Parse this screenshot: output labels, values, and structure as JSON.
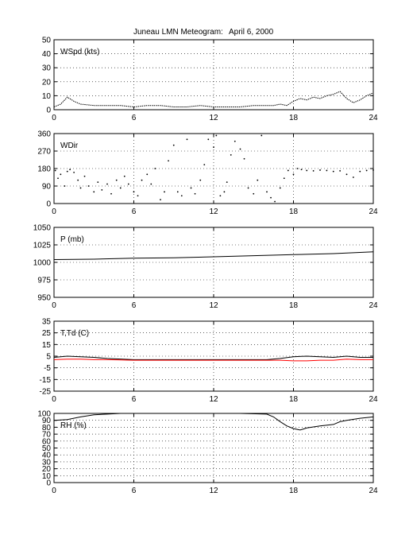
{
  "figure": {
    "title": "Juneau LMN Meteogram:",
    "date": "April  6, 2000"
  },
  "chart_data": [
    {
      "type": "line",
      "label": "WSpd (kts)",
      "xlim": [
        0,
        24
      ],
      "xticks": [
        0,
        6,
        12,
        18,
        24
      ],
      "ylim": [
        0,
        50
      ],
      "yticks": [
        0,
        10,
        20,
        30,
        40,
        50
      ],
      "grid": true,
      "series": [
        {
          "color": "#000000",
          "style": "dotted",
          "x": [
            0,
            0.5,
            1,
            1.5,
            2,
            3,
            4,
            5,
            6,
            7,
            8,
            9,
            10,
            11,
            12,
            13,
            14,
            15,
            16,
            16.5,
            17,
            17.5,
            18,
            18.5,
            19,
            19.5,
            20,
            20.5,
            21,
            21.5,
            22,
            22.5,
            23,
            23.5,
            24
          ],
          "y": [
            2,
            4,
            9,
            6,
            4,
            3,
            3,
            3,
            2,
            3,
            3,
            2,
            2,
            3,
            2,
            2,
            2,
            3,
            3,
            3,
            4,
            3,
            6,
            8,
            7,
            9,
            8,
            10,
            11,
            13,
            8,
            5,
            7,
            10,
            12
          ]
        }
      ]
    },
    {
      "type": "scatter",
      "label": "WDir",
      "xlim": [
        0,
        24
      ],
      "xticks": [
        0,
        6,
        12,
        18,
        24
      ],
      "ylim": [
        0,
        360
      ],
      "yticks": [
        0,
        90,
        180,
        270,
        360
      ],
      "grid": true,
      "series": [
        {
          "color": "#000000",
          "x": [
            0.1,
            0.3,
            0.5,
            0.8,
            1.0,
            1.2,
            1.5,
            1.8,
            2.0,
            2.3,
            2.6,
            3.0,
            3.3,
            3.6,
            4.0,
            4.3,
            4.7,
            5.0,
            5.3,
            5.6,
            6.0,
            6.3,
            6.6,
            7.0,
            7.3,
            7.6,
            8.0,
            8.3,
            8.6,
            9.0,
            9.3,
            9.6,
            10.0,
            10.3,
            10.6,
            11.0,
            11.3,
            11.6,
            12.0,
            12.2,
            12.5,
            12.8,
            13.0,
            13.3,
            13.6,
            14.0,
            14.3,
            14.6,
            15.0,
            15.3,
            15.6,
            16.0,
            16.3,
            16.6,
            17.0,
            17.3,
            17.6,
            18.0,
            18.3,
            18.6,
            19.0,
            19.5,
            20.0,
            20.5,
            21.0,
            21.5,
            22.0,
            22.5,
            23.0,
            23.5,
            24.0
          ],
          "y": [
            170,
            130,
            150,
            90,
            165,
            175,
            160,
            120,
            80,
            140,
            90,
            60,
            110,
            70,
            100,
            50,
            120,
            80,
            140,
            100,
            60,
            40,
            120,
            150,
            100,
            180,
            20,
            60,
            220,
            300,
            60,
            40,
            330,
            80,
            50,
            120,
            200,
            330,
            290,
            350,
            40,
            60,
            110,
            250,
            320,
            280,
            230,
            80,
            50,
            120,
            350,
            60,
            30,
            10,
            80,
            130,
            170,
            150,
            180,
            175,
            170,
            168,
            172,
            170,
            165,
            168,
            150,
            135,
            165,
            170,
            172
          ]
        }
      ]
    },
    {
      "type": "line",
      "label": "P (mb)",
      "xlim": [
        0,
        24
      ],
      "xticks": [
        0,
        6,
        12,
        18,
        24
      ],
      "ylim": [
        950,
        1050
      ],
      "yticks": [
        950,
        975,
        1000,
        1025,
        1050
      ],
      "grid": true,
      "series": [
        {
          "color": "#000000",
          "x": [
            0,
            3,
            6,
            9,
            12,
            15,
            18,
            21,
            24
          ],
          "y": [
            1004,
            1004.5,
            1006,
            1006.5,
            1008,
            1009.5,
            1011,
            1012.5,
            1015
          ]
        }
      ]
    },
    {
      "type": "line",
      "label": "T,Td (C)",
      "xlim": [
        0,
        24
      ],
      "xticks": [
        0,
        6,
        12,
        18,
        24
      ],
      "ylim": [
        -25,
        35
      ],
      "yticks": [
        -25,
        -15,
        -5,
        5,
        15,
        25,
        35
      ],
      "grid": true,
      "series": [
        {
          "color": "#000000",
          "x": [
            0,
            1,
            2,
            3,
            4,
            6,
            8,
            10,
            12,
            14,
            16,
            17,
            18,
            19,
            20,
            21,
            22,
            23,
            24
          ],
          "y": [
            4,
            5,
            4.5,
            4,
            3,
            2,
            2,
            2,
            2,
            2,
            2,
            3,
            4.5,
            5,
            4.5,
            4,
            5,
            4,
            4
          ]
        },
        {
          "color": "#ff0000",
          "x": [
            0,
            1,
            2,
            3,
            4,
            6,
            8,
            10,
            12,
            14,
            16,
            17,
            18,
            19,
            20,
            21,
            22,
            23,
            24
          ],
          "y": [
            2,
            2.5,
            2.5,
            2,
            2,
            1.5,
            1.5,
            1.5,
            1.5,
            1.5,
            1.5,
            1.5,
            1,
            1,
            1.5,
            1.5,
            2.5,
            2,
            2
          ]
        }
      ]
    },
    {
      "type": "line",
      "label": "RH (%)",
      "xlim": [
        0,
        24
      ],
      "xticks": [
        0,
        6,
        12,
        18,
        24
      ],
      "ylim": [
        0,
        100
      ],
      "yticks": [
        0,
        10,
        20,
        30,
        40,
        50,
        60,
        70,
        80,
        90,
        100
      ],
      "grid": true,
      "series": [
        {
          "color": "#000000",
          "x": [
            0,
            1,
            2,
            3,
            4,
            5,
            6,
            8,
            10,
            12,
            14,
            16,
            16.5,
            17,
            17.5,
            18,
            18.5,
            19,
            20,
            21,
            21.5,
            22,
            23,
            24
          ],
          "y": [
            90,
            91,
            95,
            98,
            99,
            100,
            100,
            100,
            100,
            100,
            100,
            99,
            95,
            88,
            82,
            78,
            76,
            79,
            82,
            84,
            88,
            90,
            93,
            95
          ]
        }
      ]
    }
  ]
}
